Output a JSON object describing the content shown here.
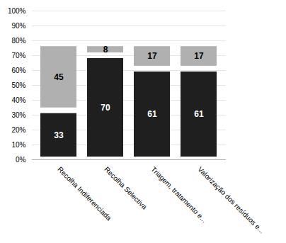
{
  "chart_data": {
    "type": "bar",
    "stacked": true,
    "categories": [
      "Recolha Indiferenciada",
      "Recolha Selectiva",
      "Triagem, tratamento e...",
      "Valorização dos resíduos e..."
    ],
    "series": [
      {
        "color": "#1f1f1f",
        "values": [
          33,
          70,
          61,
          61
        ]
      },
      {
        "color": "#b0b0b0",
        "values": [
          45,
          8,
          17,
          17
        ]
      }
    ],
    "ylim": [
      0,
      100
    ],
    "yticks": [
      {
        "value": 0,
        "label": "0%"
      },
      {
        "value": 10,
        "label": "10%"
      },
      {
        "value": 20,
        "label": "20%"
      },
      {
        "value": 30,
        "label": "30%"
      },
      {
        "value": 40,
        "label": "40%"
      },
      {
        "value": 50,
        "label": "50%"
      },
      {
        "value": 60,
        "label": "60%"
      },
      {
        "value": 70,
        "label": "70%"
      },
      {
        "value": 80,
        "label": "80%"
      },
      {
        "value": 90,
        "label": "90%"
      },
      {
        "value": 100,
        "label": "100%"
      }
    ],
    "grid": true,
    "data_labels": true
  }
}
